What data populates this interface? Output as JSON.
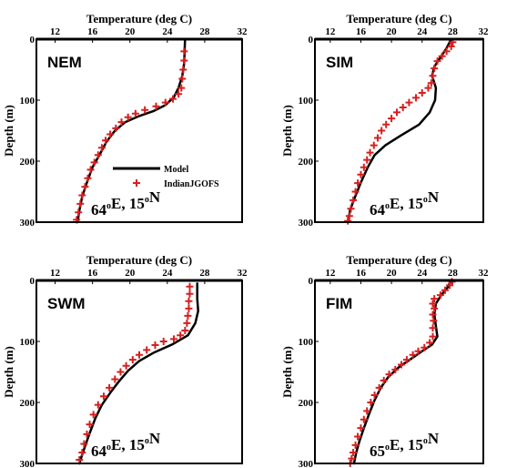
{
  "chart_data": [
    {
      "type": "line",
      "label": "NEM",
      "location": {
        "lon": "64",
        "lat": "15"
      },
      "xlabel": "Temperature (deg C)",
      "ylabel": "Depth (m)",
      "xlim": [
        10,
        32
      ],
      "ylim": [
        0,
        300
      ],
      "y_inverted": true,
      "x_axis_position": "top",
      "xticks": [
        12,
        16,
        20,
        24,
        28,
        32
      ],
      "yticks": [
        0,
        100,
        200,
        300
      ],
      "legend": {
        "position": "center",
        "entries": [
          "Model",
          "IndianJGOFS"
        ]
      },
      "series": [
        {
          "name": "Model",
          "style": "line",
          "color": "#000000",
          "points": [
            [
              25.9,
              0
            ],
            [
              25.8,
              40
            ],
            [
              25.6,
              60
            ],
            [
              25.2,
              80
            ],
            [
              24.7,
              95
            ],
            [
              23.8,
              108
            ],
            [
              22.5,
              118
            ],
            [
              21.0,
              126
            ],
            [
              19.5,
              136
            ],
            [
              18.4,
              150
            ],
            [
              17.5,
              168
            ],
            [
              16.8,
              188
            ],
            [
              16.0,
              210
            ],
            [
              15.4,
              235
            ],
            [
              14.9,
              258
            ],
            [
              14.6,
              280
            ],
            [
              14.4,
              300
            ]
          ]
        },
        {
          "name": "IndianJGOFS",
          "style": "markers",
          "marker": "+",
          "color": "#d62020",
          "points": [
            [
              25.8,
              20
            ],
            [
              25.8,
              35
            ],
            [
              25.7,
              50
            ],
            [
              25.6,
              65
            ],
            [
              25.5,
              80
            ],
            [
              25.2,
              90
            ],
            [
              24.6,
              98
            ],
            [
              23.8,
              104
            ],
            [
              22.8,
              110
            ],
            [
              21.6,
              116
            ],
            [
              20.6,
              122
            ],
            [
              19.8,
              128
            ],
            [
              19.1,
              136
            ],
            [
              18.5,
              146
            ],
            [
              17.9,
              156
            ],
            [
              17.4,
              166
            ],
            [
              17.0,
              178
            ],
            [
              16.6,
              190
            ],
            [
              16.2,
              202
            ],
            [
              15.8,
              214
            ],
            [
              15.5,
              228
            ],
            [
              15.2,
              242
            ],
            [
              14.9,
              256
            ],
            [
              14.7,
              270
            ],
            [
              14.5,
              284
            ],
            [
              14.3,
              296
            ]
          ]
        }
      ]
    },
    {
      "type": "line",
      "label": "SIM",
      "location": {
        "lon": "64",
        "lat": "15"
      },
      "xlabel": "Temperature (deg C)",
      "ylabel": "Depth (m)",
      "xlim": [
        10,
        32
      ],
      "ylim": [
        0,
        300
      ],
      "y_inverted": true,
      "x_axis_position": "top",
      "xticks": [
        12,
        16,
        20,
        24,
        28,
        32
      ],
      "yticks": [
        0,
        100,
        200,
        300
      ],
      "series": [
        {
          "name": "Model",
          "style": "line",
          "color": "#000000",
          "points": [
            [
              27.8,
              0
            ],
            [
              27.2,
              15
            ],
            [
              26.4,
              30
            ],
            [
              25.6,
              45
            ],
            [
              25.3,
              60
            ],
            [
              25.8,
              80
            ],
            [
              25.7,
              100
            ],
            [
              25.0,
              120
            ],
            [
              23.6,
              140
            ],
            [
              21.2,
              158
            ],
            [
              19.2,
              174
            ],
            [
              17.8,
              190
            ],
            [
              16.9,
              210
            ],
            [
              16.0,
              235
            ],
            [
              15.2,
              260
            ],
            [
              14.6,
              280
            ],
            [
              14.3,
              300
            ]
          ]
        },
        {
          "name": "IndianJGOFS",
          "style": "markers",
          "marker": "+",
          "color": "#d62020",
          "points": [
            [
              28.0,
              5
            ],
            [
              27.8,
              12
            ],
            [
              27.2,
              20
            ],
            [
              26.6,
              28
            ],
            [
              26.0,
              36
            ],
            [
              25.6,
              48
            ],
            [
              25.4,
              60
            ],
            [
              25.2,
              72
            ],
            [
              24.8,
              80
            ],
            [
              24.0,
              88
            ],
            [
              23.2,
              96
            ],
            [
              22.3,
              104
            ],
            [
              21.5,
              112
            ],
            [
              20.7,
              120
            ],
            [
              20.0,
              130
            ],
            [
              19.3,
              140
            ],
            [
              18.7,
              150
            ],
            [
              18.2,
              162
            ],
            [
              17.7,
              174
            ],
            [
              17.2,
              186
            ],
            [
              16.8,
              198
            ],
            [
              16.4,
              210
            ],
            [
              16.0,
              222
            ],
            [
              15.6,
              236
            ],
            [
              15.3,
              250
            ],
            [
              15.0,
              264
            ],
            [
              14.7,
              278
            ],
            [
              14.5,
              290
            ],
            [
              14.3,
              298
            ]
          ]
        }
      ]
    },
    {
      "type": "line",
      "label": "SWM",
      "location": {
        "lon": "64",
        "lat": "15"
      },
      "xlabel": "Temperature (deg C)",
      "ylabel": "Depth (m)",
      "xlim": [
        10,
        32
      ],
      "ylim": [
        0,
        300
      ],
      "y_inverted": true,
      "x_axis_position": "top",
      "xticks": [
        12,
        16,
        20,
        24,
        28,
        32
      ],
      "yticks": [
        0,
        100,
        200,
        300
      ],
      "series": [
        {
          "name": "Model",
          "style": "line",
          "color": "#000000",
          "points": [
            [
              27.2,
              5
            ],
            [
              27.2,
              30
            ],
            [
              27.3,
              50
            ],
            [
              27.0,
              70
            ],
            [
              26.2,
              90
            ],
            [
              24.5,
              105
            ],
            [
              22.6,
              118
            ],
            [
              21.0,
              132
            ],
            [
              19.8,
              148
            ],
            [
              18.8,
              166
            ],
            [
              17.9,
              184
            ],
            [
              17.0,
              204
            ],
            [
              16.3,
              226
            ],
            [
              15.7,
              250
            ],
            [
              15.2,
              272
            ],
            [
              14.8,
              290
            ],
            [
              14.6,
              300
            ]
          ]
        },
        {
          "name": "IndianJGOFS",
          "style": "markers",
          "marker": "+",
          "color": "#d62020",
          "points": [
            [
              26.4,
              10
            ],
            [
              26.4,
              22
            ],
            [
              26.3,
              34
            ],
            [
              26.3,
              46
            ],
            [
              26.2,
              58
            ],
            [
              26.1,
              70
            ],
            [
              25.9,
              82
            ],
            [
              25.4,
              90
            ],
            [
              24.7,
              96
            ],
            [
              23.6,
              100
            ],
            [
              22.7,
              106
            ],
            [
              21.8,
              114
            ],
            [
              21.0,
              122
            ],
            [
              20.3,
              130
            ],
            [
              19.6,
              140
            ],
            [
              19.0,
              150
            ],
            [
              18.4,
              162
            ],
            [
              17.8,
              176
            ],
            [
              17.2,
              190
            ],
            [
              16.6,
              204
            ],
            [
              16.1,
              220
            ],
            [
              15.7,
              236
            ],
            [
              15.4,
              252
            ],
            [
              15.1,
              268
            ],
            [
              14.9,
              282
            ],
            [
              14.6,
              294
            ]
          ]
        }
      ]
    },
    {
      "type": "line",
      "label": "FIM",
      "location": {
        "lon": "65",
        "lat": "15"
      },
      "xlabel": "Temperature (deg C)",
      "ylabel": "Depth (m)",
      "xlim": [
        10,
        32
      ],
      "ylim": [
        0,
        300
      ],
      "y_inverted": true,
      "x_axis_position": "top",
      "xticks": [
        12,
        16,
        20,
        24,
        28,
        32
      ],
      "yticks": [
        0,
        100,
        200,
        300
      ],
      "series": [
        {
          "name": "Model",
          "style": "line",
          "color": "#000000",
          "points": [
            [
              27.8,
              0
            ],
            [
              27.3,
              12
            ],
            [
              26.5,
              24
            ],
            [
              25.8,
              38
            ],
            [
              25.6,
              55
            ],
            [
              25.8,
              75
            ],
            [
              26.0,
              92
            ],
            [
              25.3,
              105
            ],
            [
              24.0,
              116
            ],
            [
              22.6,
              128
            ],
            [
              21.0,
              142
            ],
            [
              19.6,
              158
            ],
            [
              18.6,
              176
            ],
            [
              17.8,
              196
            ],
            [
              17.1,
              218
            ],
            [
              16.4,
              242
            ],
            [
              15.8,
              264
            ],
            [
              15.4,
              282
            ],
            [
              15.1,
              300
            ]
          ]
        },
        {
          "name": "IndianJGOFS",
          "style": "markers",
          "marker": "+",
          "color": "#d62020",
          "points": [
            [
              27.9,
              2
            ],
            [
              27.6,
              8
            ],
            [
              27.0,
              16
            ],
            [
              26.4,
              24
            ],
            [
              25.6,
              30
            ],
            [
              25.4,
              38
            ],
            [
              25.6,
              46
            ],
            [
              25.4,
              56
            ],
            [
              25.5,
              66
            ],
            [
              25.4,
              78
            ],
            [
              25.4,
              92
            ],
            [
              25.0,
              102
            ],
            [
              24.3,
              110
            ],
            [
              23.5,
              116
            ],
            [
              22.8,
              122
            ],
            [
              22.0,
              130
            ],
            [
              21.3,
              138
            ],
            [
              20.5,
              146
            ],
            [
              19.7,
              154
            ],
            [
              19.0,
              164
            ],
            [
              18.4,
              176
            ],
            [
              17.8,
              188
            ],
            [
              17.3,
              200
            ],
            [
              16.8,
              214
            ],
            [
              16.4,
              228
            ],
            [
              16.0,
              242
            ],
            [
              15.6,
              256
            ],
            [
              15.3,
              270
            ],
            [
              15.0,
              282
            ],
            [
              14.8,
              292
            ],
            [
              14.6,
              300
            ]
          ]
        }
      ]
    }
  ]
}
